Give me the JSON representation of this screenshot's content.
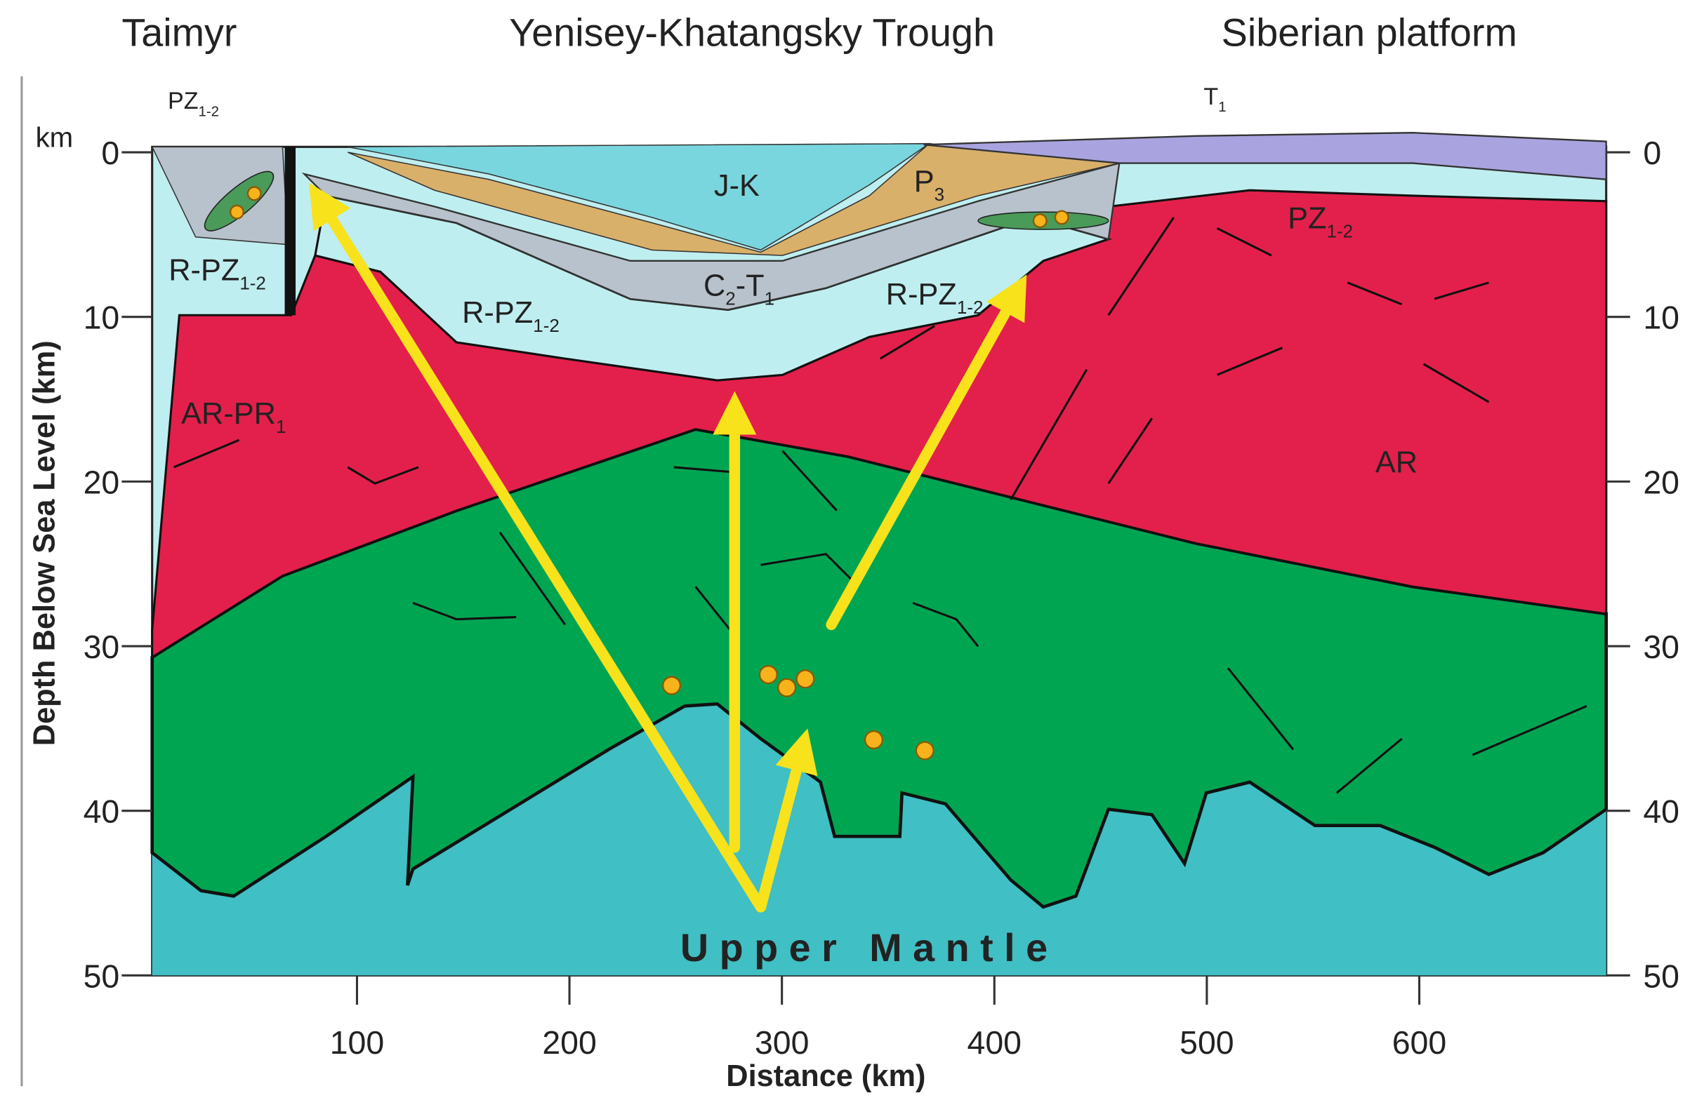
{
  "header": {
    "regions": [
      "Taimyr",
      "Yenisey-Khatangsky Trough",
      "Siberian platform"
    ]
  },
  "axes": {
    "unit": "km",
    "y_label": "Depth Below Sea Level (km)",
    "x_label": "Distance (km)",
    "y_ticks": [
      0,
      10,
      20,
      30,
      40,
      50
    ],
    "x_ticks": [
      100,
      200,
      300,
      400,
      500,
      600
    ]
  },
  "formations": [
    {
      "main": "PZ",
      "sub": "1-2"
    },
    {
      "main": "T",
      "sub": "1"
    },
    {
      "main": "J-K"
    },
    {
      "main": "P",
      "sub": "3"
    },
    {
      "main": "PZ",
      "sub": "1-2"
    },
    {
      "main": "R-PZ",
      "sub": "1-2"
    },
    {
      "main": "R-PZ",
      "sub": "1-2"
    },
    {
      "main": "C",
      "sub": "2",
      "main2": "-T",
      "sub2": "1"
    },
    {
      "main": "R-PZ",
      "sub": "1-2"
    },
    {
      "main": "AR-PR",
      "sub": "1"
    },
    {
      "main": "AR"
    }
  ],
  "mantle_label": "Upper Mantle"
}
